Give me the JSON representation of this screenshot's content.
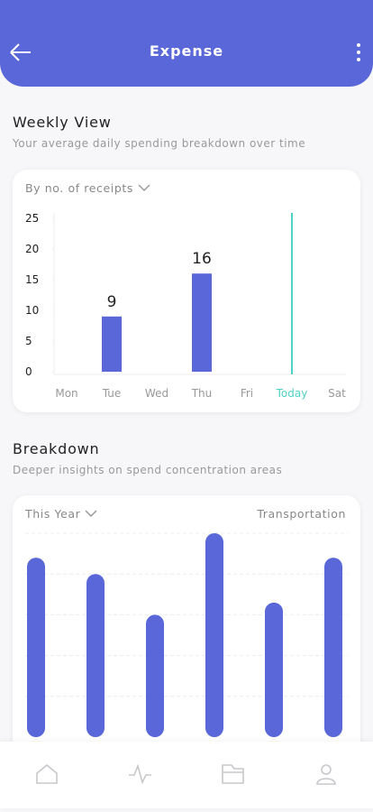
{
  "header": {
    "title": "Expense"
  },
  "weekly": {
    "title": "Weekly View",
    "subtitle": "Your average daily spending breakdown over time",
    "filter": "By no. of receipts"
  },
  "breakdown": {
    "title": "Breakdown",
    "subtitle": "Deeper insights on spend concentration areas",
    "filter": "This Year",
    "category": "Transportation"
  },
  "chart_data": [
    {
      "type": "bar",
      "categories": [
        "Mon",
        "Tue",
        "Wed",
        "Thu",
        "Fri",
        "Today",
        "Sat"
      ],
      "values": [
        null,
        9,
        null,
        16,
        null,
        null,
        null
      ],
      "color": "#5a67d8",
      "highlight": "Today",
      "highlight_color": "#4fd1c5",
      "ylim": [
        0,
        25
      ],
      "yticks": [
        0,
        5,
        10,
        15,
        20,
        25
      ],
      "grid": false
    },
    {
      "type": "bar",
      "categories": [
        null,
        null,
        null,
        null,
        null,
        null
      ],
      "values": [
        4.4,
        4.0,
        3.0,
        5.0,
        3.3,
        4.4
      ],
      "color": "#5a67d8",
      "ylim": [
        0,
        5
      ],
      "yticks": [
        1,
        2,
        3,
        4,
        5
      ],
      "grid": true
    }
  ]
}
